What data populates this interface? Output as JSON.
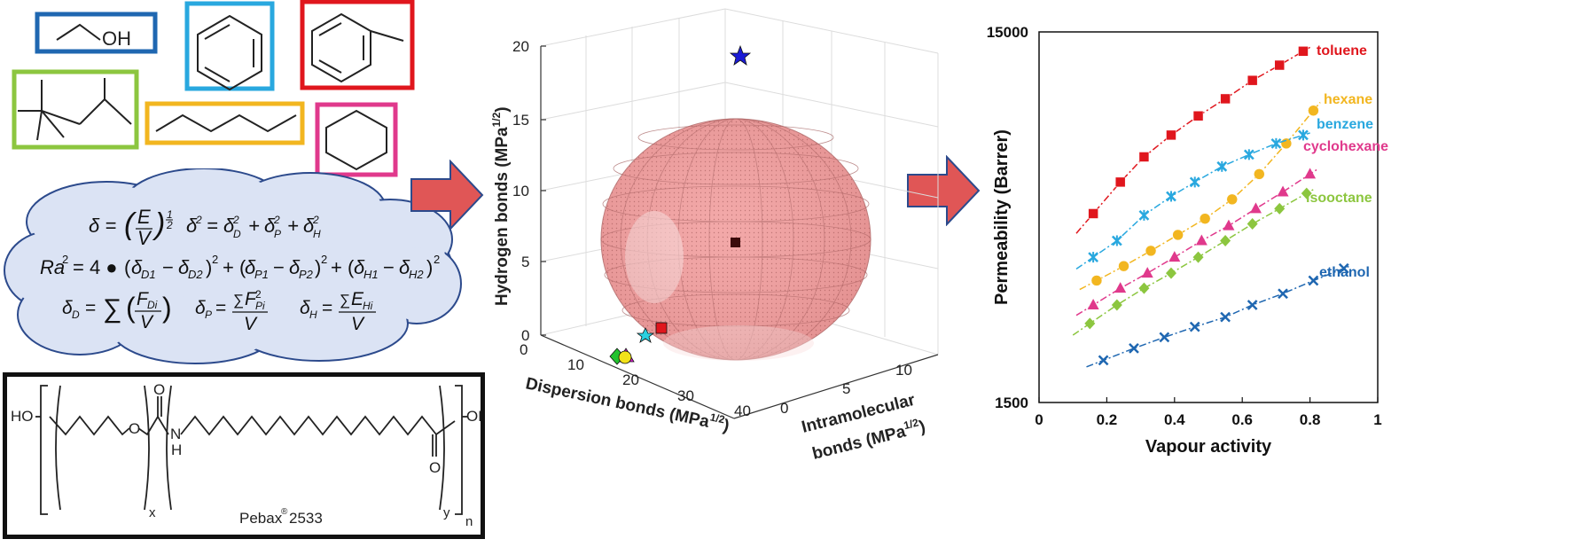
{
  "molecules": [
    {
      "name": "ethanol",
      "label": "OH",
      "color": "#1f67b1"
    },
    {
      "name": "benzene",
      "color": "#29a8df"
    },
    {
      "name": "toluene",
      "color": "#e0161d"
    },
    {
      "name": "isooctane",
      "color": "#8cc63f"
    },
    {
      "name": "hexane",
      "color": "#f2b620"
    },
    {
      "name": "cyclohexane",
      "color": "#e0398c"
    }
  ],
  "equations": {
    "eq1": "δ = (E/V)^½   δ² = δD² + δP² + δH²",
    "eq2": "Ra² = 4 • (δD1 − δD2)² + (δP1 − δP2)² + (δH1 − δH2)²",
    "eq3": "δD = Σ (FDi / V)   δP = ΣFPi² / V   δH = ΣEHi / V"
  },
  "polymer": {
    "ho": "HO",
    "oh": "OH",
    "o_ether": "O",
    "o_carbonyl": "O",
    "o_acid": "O",
    "nh": "N",
    "h": "H",
    "x": "x",
    "y": "y",
    "n": "n",
    "name": "Pebax",
    "reg": "®",
    "grade": "2533"
  },
  "sphere_plot": {
    "z_label": "Hydrogen bonds (MPa",
    "z_label_sup": "1/2",
    "z_label_end": ")",
    "x_label": "Dispersion bonds (MPa",
    "x_label_sup": "1/2",
    "x_label_end": ")",
    "y_label_1": "Intramolecular",
    "y_label_2": "bonds (MPa",
    "y_label_sup": "1/2",
    "y_label_end": ")",
    "z_ticks": [
      "0",
      "5",
      "10",
      "15",
      "20"
    ],
    "x_ticks": [
      "0",
      "10",
      "20",
      "30",
      "40"
    ],
    "y_ticks": [
      "0",
      "5",
      "10"
    ]
  },
  "chart_data": {
    "type": "scatter",
    "title": "",
    "xlabel": "Vapour activity",
    "ylabel": "Permeability (Barrer)",
    "xlim": [
      0,
      1
    ],
    "ylim": [
      1500,
      15000
    ],
    "yscale": "log",
    "x_ticks": [
      "0",
      "0.2",
      "0.4",
      "0.6",
      "0.8",
      "1"
    ],
    "y_ticks": [
      "1500",
      "15000"
    ],
    "grid": false,
    "series": [
      {
        "name": "toluene",
        "color": "#e0161d",
        "marker": "square",
        "x": [
          0.16,
          0.24,
          0.31,
          0.39,
          0.47,
          0.55,
          0.63,
          0.71,
          0.78
        ],
        "y": [
          4850,
          5900,
          6900,
          7900,
          8900,
          9900,
          11100,
          12200,
          13300
        ]
      },
      {
        "name": "hexane",
        "color": "#f2b620",
        "marker": "circle",
        "x": [
          0.17,
          0.25,
          0.33,
          0.41,
          0.49,
          0.57,
          0.65,
          0.73,
          0.81
        ],
        "y": [
          3200,
          3500,
          3850,
          4250,
          4700,
          5300,
          6200,
          7500,
          9200
        ]
      },
      {
        "name": "benzene",
        "color": "#29a8df",
        "marker": "cross",
        "x": [
          0.16,
          0.23,
          0.31,
          0.39,
          0.46,
          0.54,
          0.62,
          0.7,
          0.78
        ],
        "y": [
          3700,
          4100,
          4800,
          5400,
          5900,
          6500,
          7000,
          7500,
          7900
        ]
      },
      {
        "name": "cyclohexane",
        "color": "#e0398c",
        "marker": "triangle",
        "x": [
          0.16,
          0.24,
          0.32,
          0.4,
          0.48,
          0.56,
          0.64,
          0.72,
          0.8
        ],
        "y": [
          2750,
          3050,
          3350,
          3700,
          4100,
          4500,
          5000,
          5550,
          6200
        ]
      },
      {
        "name": "isooctane",
        "color": "#8cc63f",
        "marker": "diamond",
        "x": [
          0.15,
          0.23,
          0.31,
          0.39,
          0.47,
          0.55,
          0.63,
          0.71,
          0.79
        ],
        "y": [
          2450,
          2750,
          3050,
          3350,
          3700,
          4100,
          4550,
          5000,
          5500
        ]
      },
      {
        "name": "ethanol",
        "color": "#1f67b1",
        "marker": "x",
        "x": [
          0.19,
          0.28,
          0.37,
          0.46,
          0.55,
          0.63,
          0.72,
          0.81,
          0.9
        ],
        "y": [
          1950,
          2100,
          2250,
          2400,
          2550,
          2750,
          2950,
          3200,
          3450
        ]
      }
    ]
  }
}
